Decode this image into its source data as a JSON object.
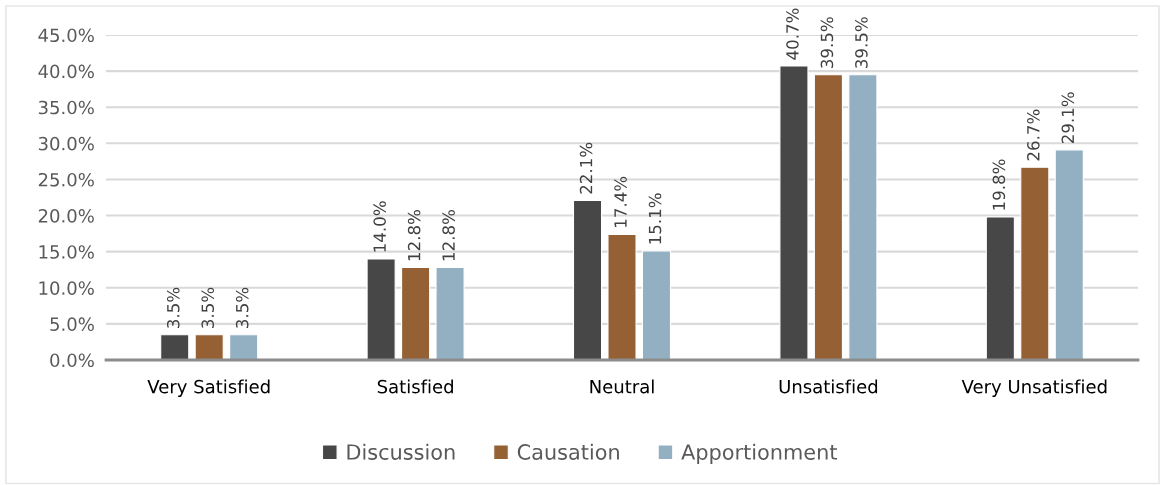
{
  "chart_data": {
    "type": "bar",
    "categories": [
      "Very Satisfied",
      "Satisfied",
      "Neutral",
      "Unsatisfied",
      "Very Unsatisfied"
    ],
    "series": [
      {
        "name": "Discussion",
        "color": "#474747",
        "values": [
          3.5,
          14.0,
          22.1,
          40.7,
          19.8
        ],
        "value_labels": [
          "3.5%",
          "14.0%",
          "22.1%",
          "40.7%",
          "19.8%"
        ]
      },
      {
        "name": "Causation",
        "color": "#956134",
        "values": [
          3.5,
          12.8,
          17.4,
          39.5,
          26.7
        ],
        "value_labels": [
          "3.5%",
          "12.8%",
          "17.4%",
          "39.5%",
          "26.7%"
        ]
      },
      {
        "name": "Apportionment",
        "color": "#93b0c3",
        "values": [
          3.5,
          12.8,
          15.1,
          39.5,
          29.1
        ],
        "value_labels": [
          "3.5%",
          "12.8%",
          "15.1%",
          "39.5%",
          "29.1%"
        ]
      }
    ],
    "ylim": [
      0,
      45
    ],
    "yticks": [
      {
        "value": 0,
        "label": "0.0%"
      },
      {
        "value": 5,
        "label": "5.0%"
      },
      {
        "value": 10,
        "label": "10.0%"
      },
      {
        "value": 15,
        "label": "15.0%"
      },
      {
        "value": 20,
        "label": "20.0%"
      },
      {
        "value": 25,
        "label": "25.0%"
      },
      {
        "value": 30,
        "label": "30.0%"
      },
      {
        "value": 35,
        "label": "35.0%"
      },
      {
        "value": 40,
        "label": "40.0%"
      },
      {
        "value": 45,
        "label": "45.0%"
      }
    ],
    "grid": "y",
    "legend": "bottom"
  }
}
